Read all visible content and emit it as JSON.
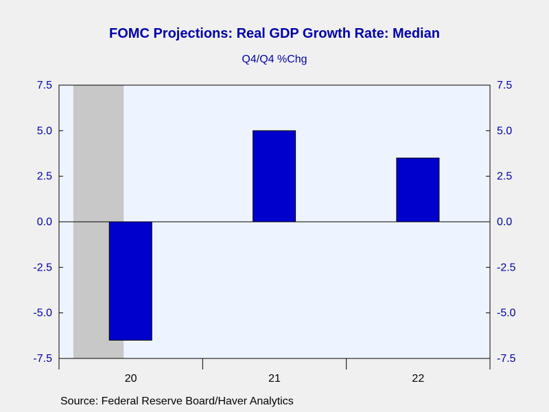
{
  "colors": {
    "page_background": "#f0f0f0",
    "plot_background": "#eef4ff",
    "bar_fill": "#0000cc",
    "bar_stroke": "#000000",
    "recession_shade": "#c8c8c8",
    "axis_label_color": "#0000a8"
  },
  "chart_data": {
    "type": "bar",
    "title": "FOMC Projections: Real GDP Growth Rate: Median",
    "subtitle": "Q4/Q4 %Chg",
    "categories": [
      "20",
      "21",
      "22"
    ],
    "series": [
      {
        "values": [
          -6.5,
          5.0,
          3.5
        ]
      }
    ],
    "ylim": [
      -7.5,
      7.5
    ],
    "yticks": [
      7.5,
      5.0,
      2.5,
      0.0,
      -2.5,
      -5.0,
      -7.5
    ],
    "ytick_labels": [
      "7.5",
      "5.0",
      "2.5",
      "0.0",
      "-2.5",
      "-5.0",
      "-7.5"
    ],
    "dual_y_axis": true,
    "grid": false,
    "zero_line": true,
    "recession_shading": {
      "category": "20",
      "from_fraction": 0.1,
      "to_fraction": 0.45
    },
    "source": "Source:  Federal Reserve Board/Haver Analytics"
  }
}
